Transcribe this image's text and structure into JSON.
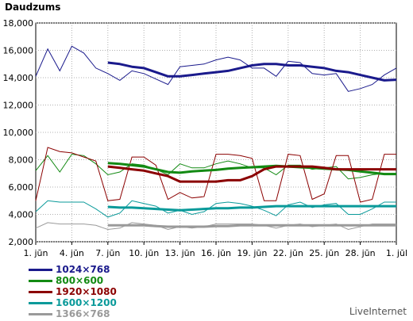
{
  "chart_data": {
    "type": "line",
    "title": "Daudzums",
    "ylim": [
      2000,
      18000
    ],
    "y_ticks": [
      "2,000",
      "4,000",
      "6,000",
      "8,000",
      "10,000",
      "12,000",
      "14,000",
      "16,000",
      "18,000"
    ],
    "y_tick_values": [
      2000,
      4000,
      6000,
      8000,
      10000,
      12000,
      14000,
      16000,
      18000
    ],
    "x_ticks": [
      "1. jūn",
      "4. jūn",
      "7. jūn",
      "10. jūn",
      "13. jūn",
      "16. jūn",
      "19. jūn",
      "22. jūn",
      "25. jūn",
      "28. jūn",
      "1. jūl"
    ],
    "x_tick_days": [
      0,
      3,
      6,
      9,
      12,
      15,
      18,
      21,
      24,
      27,
      30
    ],
    "grid": true,
    "legend_placement": "bottom-left",
    "series": [
      {
        "name": "1024×768",
        "color": "#1a1a8c",
        "daily": [
          14100,
          16100,
          14500,
          16300,
          15800,
          14700,
          14300,
          13800,
          14500,
          14300,
          13900,
          13500,
          14800,
          14900,
          15000,
          15300,
          15500,
          15300,
          14700,
          14700,
          14100,
          15200,
          15100,
          14300,
          14200,
          14300,
          13000,
          13200,
          13500,
          14200,
          14700
        ],
        "trend": [
          null,
          null,
          null,
          null,
          null,
          null,
          15100,
          15000,
          14800,
          14700,
          14400,
          14100,
          14100,
          14200,
          14300,
          14400,
          14500,
          14700,
          14900,
          15000,
          15000,
          14900,
          14900,
          14800,
          14700,
          14500,
          14400,
          14200,
          14000,
          13800,
          13850
        ]
      },
      {
        "name": "800×600",
        "color": "#138a13",
        "daily": [
          7200,
          8300,
          7100,
          8400,
          8300,
          7700,
          6900,
          7100,
          7700,
          7600,
          7300,
          6900,
          7700,
          7400,
          7400,
          7700,
          7900,
          7700,
          7400,
          7400,
          6900,
          7600,
          7600,
          7300,
          7400,
          7500,
          6600,
          6700,
          6900,
          7000,
          7000
        ],
        "trend": [
          null,
          null,
          null,
          null,
          null,
          null,
          7750,
          7700,
          7600,
          7500,
          7300,
          7100,
          7050,
          7150,
          7200,
          7250,
          7350,
          7400,
          7450,
          7500,
          7550,
          7500,
          7450,
          7400,
          7350,
          7300,
          7250,
          7150,
          7050,
          6950,
          6950
        ]
      },
      {
        "name": "1920×1080",
        "color": "#8b0000",
        "daily": [
          5000,
          8900,
          8600,
          8500,
          8200,
          7900,
          5000,
          5100,
          8200,
          8200,
          7600,
          5100,
          5600,
          5200,
          5300,
          8400,
          8400,
          8300,
          8100,
          5000,
          5000,
          8400,
          8300,
          5100,
          5500,
          8300,
          8300,
          4900,
          5100,
          8400,
          8400
        ],
        "trend": [
          null,
          null,
          null,
          null,
          null,
          null,
          7500,
          7400,
          7300,
          7200,
          7000,
          6800,
          6400,
          6400,
          6400,
          6400,
          6500,
          6500,
          6800,
          7300,
          7500,
          7500,
          7500,
          7500,
          7400,
          7300,
          7300,
          7300,
          7300,
          7300,
          7300
        ]
      },
      {
        "name": "1600×1200",
        "color": "#0a9a9a",
        "daily": [
          4200,
          5000,
          4900,
          4900,
          4900,
          4400,
          3800,
          4100,
          5000,
          4800,
          4600,
          4100,
          4300,
          4000,
          4200,
          4800,
          4900,
          4800,
          4600,
          4300,
          3900,
          4700,
          4900,
          4500,
          4700,
          4800,
          4000,
          4000,
          4400,
          4900,
          4900
        ],
        "trend": [
          null,
          null,
          null,
          null,
          null,
          null,
          4550,
          4500,
          4500,
          4450,
          4400,
          4350,
          4300,
          4350,
          4400,
          4450,
          4450,
          4500,
          4500,
          4550,
          4600,
          4600,
          4600,
          4600,
          4600,
          4600,
          4600,
          4600,
          4600,
          4600,
          4600
        ]
      },
      {
        "name": "1366×768",
        "color": "#9a9a9a",
        "daily": [
          3000,
          3400,
          3300,
          3300,
          3300,
          3200,
          2900,
          3000,
          3400,
          3300,
          3200,
          2900,
          3100,
          3000,
          3100,
          3300,
          3300,
          3300,
          3300,
          3200,
          3000,
          3200,
          3300,
          3100,
          3200,
          3300,
          2900,
          3100,
          3300,
          3300,
          3300
        ],
        "trend": [
          null,
          null,
          null,
          null,
          null,
          null,
          3200,
          3200,
          3200,
          3200,
          3150,
          3100,
          3100,
          3100,
          3100,
          3150,
          3150,
          3200,
          3200,
          3200,
          3200,
          3200,
          3200,
          3200,
          3200,
          3200,
          3200,
          3200,
          3200,
          3200,
          3200
        ]
      }
    ]
  },
  "brand": "LiveInternet"
}
